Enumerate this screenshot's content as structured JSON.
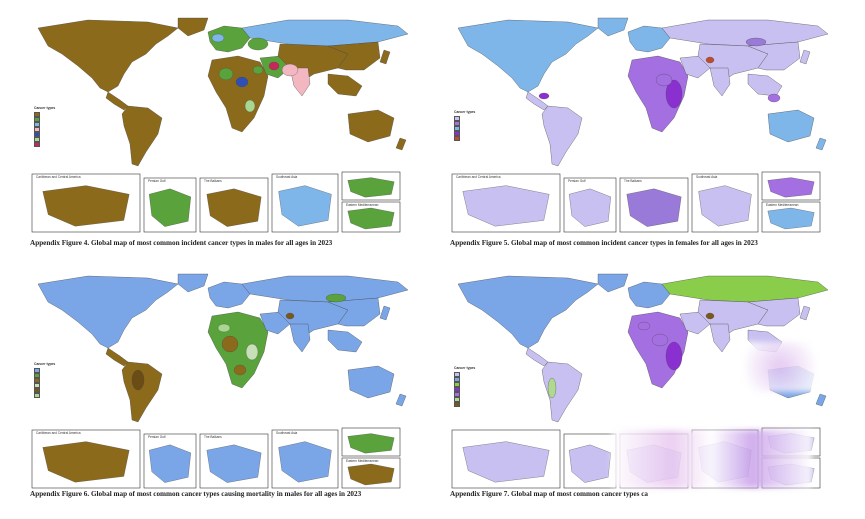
{
  "figures": [
    {
      "id": "fig-top-left",
      "caption": "Appendix Figure 4. Global map of most common incident cancer types in males for all ages in 2023",
      "ocean": "#ffffff",
      "base": "#8c6a1c",
      "colors": {
        "a": "#8c6a1c",
        "b": "#5aa23c",
        "c": "#7eb6ea",
        "d": "#f3b7c2",
        "e": "#2f4fb4",
        "f": "#a8d890",
        "g": "#c6285a"
      },
      "legend": {
        "title": "Cancer types",
        "items": [
          "",
          "",
          "",
          "",
          "",
          "",
          ""
        ]
      },
      "insets": [
        "Caribbean and Central America",
        "Persian Gulf",
        "The Balkans",
        "Southeast Asia",
        "",
        "Eastern Mediterranean"
      ]
    },
    {
      "id": "fig-top-right",
      "caption": "Appendix Figure 5. Global map of most common incident cancer types in females for all ages in 2023",
      "ocean": "#ffffff",
      "base": "#c8c0f0",
      "colors": {
        "a": "#c8c0f0",
        "b": "#a46fe0",
        "c": "#7eb6ea",
        "d": "#8a2fd0",
        "e": "#c04a2a",
        "f": "#9a7ad8",
        "g": "#d9d4f5"
      },
      "legend": {
        "title": "Cancer types",
        "items": [
          "",
          "",
          "",
          "",
          ""
        ]
      },
      "insets": [
        "Caribbean and Central America",
        "Persian Gulf",
        "The Balkans",
        "Southeast Asia",
        "",
        "Eastern Mediterranean"
      ]
    },
    {
      "id": "fig-bottom-left",
      "caption": "Appendix Figure 6. Global map of most common cancer types causing mortality in males for all ages in 2023",
      "ocean": "#ffffff",
      "base": "#7aa6e8",
      "colors": {
        "a": "#7aa6e8",
        "b": "#5aa23c",
        "c": "#8c6a1c",
        "d": "#c8e0b8",
        "e": "#7a5818",
        "f": "#a8d890",
        "g": "#6a4c14"
      },
      "legend": {
        "title": "Cancer types",
        "items": [
          "",
          "",
          "",
          "",
          "",
          ""
        ]
      },
      "insets": [
        "Caribbean and Central America",
        "Persian Gulf",
        "The Balkans",
        "Southeast Asia",
        "",
        "Eastern Mediterranean"
      ]
    },
    {
      "id": "fig-bottom-right",
      "caption": "Appendix Figure 7. Global map of most common cancer types ca",
      "ocean": "#ffffff",
      "base": "#c8c0f0",
      "colors": {
        "a": "#c8c0f0",
        "b": "#7aa6e8",
        "c": "#8acd4a",
        "d": "#8a2fd0",
        "e": "#a46fe0",
        "f": "#b0d890",
        "g": "#7a5818"
      },
      "legend": {
        "title": "Cancer types",
        "items": [
          "",
          "",
          "",
          "",
          "",
          "",
          ""
        ]
      },
      "insets": [
        "",
        "",
        "",
        "",
        "",
        ""
      ]
    }
  ]
}
